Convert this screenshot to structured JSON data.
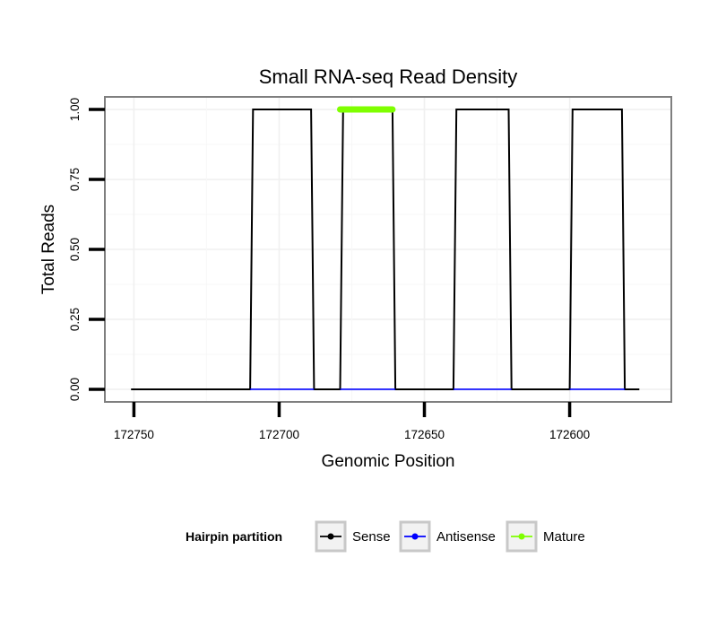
{
  "chart_data": {
    "type": "line",
    "title": "Small RNA-seq Read Density",
    "xlabel": "Genomic Position",
    "ylabel": "Total Reads",
    "x_reversed": true,
    "xlim": [
      172760,
      172565
    ],
    "ylim": [
      -0.045,
      1.045
    ],
    "x_ticks": [
      172750,
      172700,
      172650,
      172600
    ],
    "x_tick_labels": [
      "172750",
      "172700",
      "172650",
      "172600"
    ],
    "y_ticks": [
      0,
      0.25,
      0.5,
      0.75,
      1
    ],
    "y_tick_labels": [
      "0.00",
      "0.25",
      "0.50",
      "0.75",
      "1.00"
    ],
    "grid": true,
    "legend": {
      "title": "Hairpin partition",
      "position": "bottom",
      "entries": [
        "Sense",
        "Antisense",
        "Mature"
      ]
    },
    "series": [
      {
        "name": "Sense",
        "color": "#000000",
        "x": [
          172751,
          172710,
          172709,
          172689,
          172688,
          172679,
          172678,
          172661,
          172660,
          172640,
          172639,
          172621,
          172620,
          172600,
          172599,
          172582,
          172581,
          172576
        ],
        "y": [
          0,
          0,
          1,
          1,
          0,
          0,
          1,
          1,
          0,
          0,
          1,
          1,
          0,
          0,
          1,
          1,
          0,
          0
        ]
      },
      {
        "name": "Antisense",
        "color": "#0000ff",
        "x": [
          172710,
          172688,
          172679,
          172660,
          172640,
          172620,
          172600,
          172581
        ],
        "y": [
          0,
          0,
          0,
          0,
          0,
          0,
          0,
          0
        ]
      },
      {
        "name": "Mature",
        "color": "#7fff00",
        "x": [
          172679,
          172661
        ],
        "y": [
          1,
          1
        ]
      }
    ]
  }
}
